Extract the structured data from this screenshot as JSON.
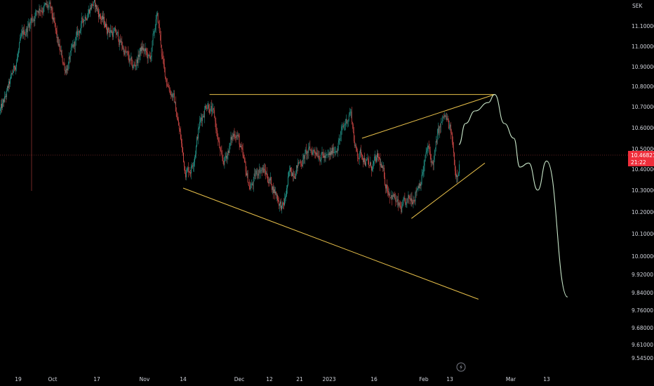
{
  "chart_data": {
    "type": "candlestick",
    "currency": "SEK",
    "colors": {
      "background": "#000000",
      "up": "#26a69a",
      "down": "#ef5350",
      "trendline": "#e8c04a",
      "projection": "#c8e6c9",
      "crosshair": "#ef5350",
      "tick_text": "#d1d4dc",
      "price_badge": "#ef2e3b"
    },
    "y_axis": {
      "ticks": [
        "11.10000",
        "11.00000",
        "10.90000",
        "10.80000",
        "10.70000",
        "10.60000",
        "10.50000",
        "10.40000",
        "10.30000",
        "10.20000",
        "10.10000",
        "10.00000",
        "9.92000",
        "9.84000",
        "9.76000",
        "9.68000",
        "9.61000",
        "9.54500"
      ]
    },
    "x_axis": {
      "ticks": [
        "19",
        "Oct",
        "17",
        "Nov",
        "14",
        "Dec",
        "12",
        "21",
        "2023",
        "16",
        "Feb",
        "13",
        "Mar",
        "13"
      ]
    },
    "current_price": {
      "value": "10.46821",
      "countdown": "21:22"
    },
    "candles_count": 650,
    "trendlines": [
      {
        "name": "upper-flat-line",
        "from": [
          "2022-11-22",
          10.76
        ],
        "to": [
          "2023-02-24",
          10.76
        ]
      },
      {
        "name": "lower-broadening-line",
        "from": [
          "2022-11-14",
          10.31
        ],
        "to": [
          "2023-02-19",
          9.81
        ]
      },
      {
        "name": "channel-upper-line",
        "from": [
          "2023-01-12",
          10.55
        ],
        "to": [
          "2023-02-24",
          10.76
        ]
      },
      {
        "name": "channel-lower-line",
        "from": [
          "2023-01-28",
          10.17
        ],
        "to": [
          "2023-02-21",
          10.43
        ]
      }
    ],
    "projection_path": [
      [
        "2023-02-13",
        10.52
      ],
      [
        "2023-02-15",
        10.62
      ],
      [
        "2023-02-18",
        10.68
      ],
      [
        "2023-02-22",
        10.72
      ],
      [
        "2023-02-24",
        10.76
      ],
      [
        "2023-02-27",
        10.62
      ],
      [
        "2023-03-02",
        10.55
      ],
      [
        "2023-03-04",
        10.41
      ],
      [
        "2023-03-07",
        10.43
      ],
      [
        "2023-03-10",
        10.3
      ],
      [
        "2023-03-13",
        10.44
      ],
      [
        "2023-03-20",
        9.82
      ]
    ],
    "icon": "lightning-icon"
  }
}
